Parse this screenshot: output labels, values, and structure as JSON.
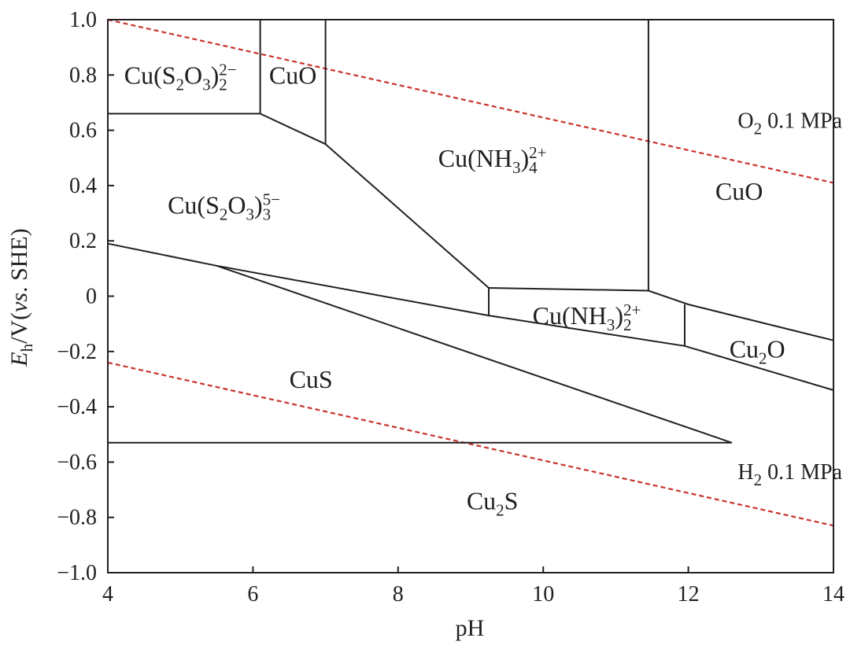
{
  "chart_data": {
    "type": "line",
    "xlabel": "pH",
    "ylabel": {
      "E": "E",
      "h": "h",
      "unit_open": "/V(",
      "vs": "vs",
      "unit_close": ". SHE)"
    },
    "xlim": [
      4,
      14
    ],
    "ylim": [
      -1.0,
      1.0
    ],
    "x_ticks": [
      {
        "value": 4,
        "label": "4"
      },
      {
        "value": 6,
        "label": "6"
      },
      {
        "value": 8,
        "label": "8"
      },
      {
        "value": 10,
        "label": "10"
      },
      {
        "value": 12,
        "label": "12"
      },
      {
        "value": 14,
        "label": "14"
      }
    ],
    "y_ticks": [
      {
        "value": 1.0,
        "label": "1.0"
      },
      {
        "value": 0.8,
        "label": "0.8"
      },
      {
        "value": 0.6,
        "label": "0.6"
      },
      {
        "value": 0.4,
        "label": "0.4"
      },
      {
        "value": 0.2,
        "label": "0.2"
      },
      {
        "value": 0.0,
        "label": "0"
      },
      {
        "value": -0.2,
        "label": "-0.2"
      },
      {
        "value": -0.4,
        "label": "-0.4"
      },
      {
        "value": -0.6,
        "label": "-0.6"
      },
      {
        "value": -0.8,
        "label": "-0.8"
      },
      {
        "value": -1.0,
        "label": "-1.0"
      }
    ],
    "grid": false,
    "boundaries": [
      {
        "id": "cutsa2-bottom",
        "points": [
          [
            4,
            0.66
          ],
          [
            6.1,
            0.66
          ]
        ]
      },
      {
        "id": "cutsa2-cuo-vertical",
        "points": [
          [
            6.1,
            1.0
          ],
          [
            6.1,
            0.66
          ]
        ]
      },
      {
        "id": "cuo-nh3-4-vertical",
        "points": [
          [
            7.0,
            1.0
          ],
          [
            7.0,
            0.55
          ]
        ]
      },
      {
        "id": "cuo-upper-bottom",
        "points": [
          [
            6.1,
            0.66
          ],
          [
            7.0,
            0.55
          ]
        ]
      },
      {
        "id": "tsa3-nh3-4-boundary",
        "points": [
          [
            7.0,
            0.55
          ],
          [
            9.25,
            0.03
          ]
        ]
      },
      {
        "id": "nh3-4-nh3-2-vertical",
        "points": [
          [
            9.25,
            0.03
          ],
          [
            9.25,
            -0.07
          ]
        ]
      },
      {
        "id": "nh3-4-nh3-2-top",
        "points": [
          [
            9.25,
            0.03
          ],
          [
            11.45,
            0.02
          ],
          [
            12.0,
            -0.03
          ],
          [
            14,
            -0.16
          ]
        ]
      },
      {
        "id": "nh3-4-cuo-vertical",
        "points": [
          [
            11.45,
            1.0
          ],
          [
            11.45,
            0.02
          ]
        ]
      },
      {
        "id": "nh3-2-cu2o-vertical",
        "points": [
          [
            11.95,
            -0.03
          ],
          [
            11.95,
            -0.18
          ]
        ]
      },
      {
        "id": "cus-upper-boundary",
        "points": [
          [
            4,
            0.19
          ],
          [
            5.5,
            0.11
          ],
          [
            9.25,
            -0.07
          ],
          [
            11.95,
            -0.18
          ],
          [
            14,
            -0.34
          ]
        ]
      },
      {
        "id": "cus-inner-boundary",
        "points": [
          [
            5.5,
            0.11
          ],
          [
            12.6,
            -0.53
          ]
        ]
      },
      {
        "id": "cu2s-top",
        "points": [
          [
            4,
            -0.53
          ],
          [
            12.6,
            -0.53
          ]
        ]
      }
    ],
    "reference_lines": [
      {
        "id": "o2-line",
        "points": [
          [
            4,
            1.0
          ],
          [
            14,
            0.41
          ]
        ]
      },
      {
        "id": "h2-line",
        "points": [
          [
            4,
            -0.24
          ],
          [
            14,
            -0.83
          ]
        ]
      }
    ],
    "regions": [
      {
        "id": "cu-s2o3-2",
        "parts": [
          "Cu(S",
          "2",
          "O",
          "3",
          ")",
          "2",
          "2−"
        ],
        "at": [
          5.0,
          0.8
        ]
      },
      {
        "id": "cuo-upper",
        "parts": [
          "CuO"
        ],
        "at": [
          6.55,
          0.8
        ]
      },
      {
        "id": "cu-s2o3-3",
        "parts": [
          "Cu(S",
          "2",
          "O",
          "3",
          ")",
          "3",
          "5−"
        ],
        "at": [
          5.6,
          0.33
        ]
      },
      {
        "id": "cu-nh3-4",
        "parts": [
          "Cu(NH",
          "3",
          ")",
          "4",
          "2+"
        ],
        "at": [
          9.3,
          0.5
        ]
      },
      {
        "id": "cuo-right",
        "parts": [
          "CuO"
        ],
        "at": [
          12.7,
          0.38
        ]
      },
      {
        "id": "cu-nh3-2",
        "parts": [
          "Cu(NH",
          "3",
          ")",
          "2",
          "2+"
        ],
        "at": [
          10.6,
          -0.07
        ]
      },
      {
        "id": "cu2o",
        "parts": [
          "Cu",
          "2",
          "O"
        ],
        "at": [
          12.95,
          -0.19
        ]
      },
      {
        "id": "cus",
        "parts": [
          "CuS"
        ],
        "at": [
          6.8,
          -0.3
        ]
      },
      {
        "id": "cu2s",
        "parts": [
          "Cu",
          "2",
          "S"
        ],
        "at": [
          9.3,
          -0.74
        ]
      }
    ],
    "reference_labels": [
      {
        "id": "o2",
        "parts": [
          "O",
          "2",
          " 0.1 MPa"
        ],
        "at": [
          13.4,
          0.64
        ]
      },
      {
        "id": "h2",
        "parts": [
          "H",
          "2",
          " 0.1 MPa"
        ],
        "at": [
          13.4,
          -0.63
        ]
      }
    ],
    "colors": {
      "boundary": "#231f20",
      "reference": "#c8322d",
      "background": "#ffffff"
    }
  }
}
